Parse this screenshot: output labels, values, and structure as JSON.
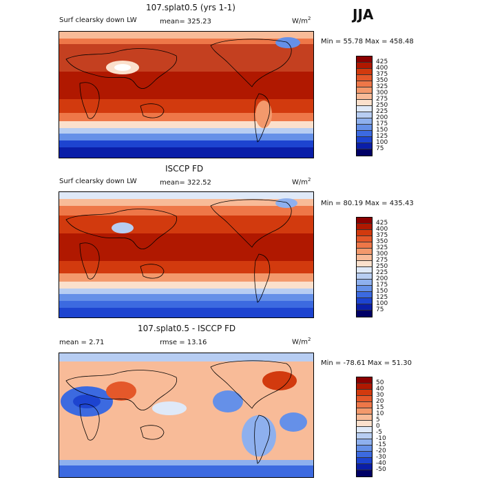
{
  "season": "JJA",
  "panels": [
    {
      "title": "107.splat0.5 (yrs 1-1)",
      "variable": "Surf clearsky down LW",
      "mean": "mean= 325.23",
      "units": "W/m",
      "units_sup": "2",
      "minmax": "Min =  55.78 Max = 458.48",
      "levels": [
        "425",
        "400",
        "375",
        "350",
        "325",
        "300",
        "275",
        "250",
        "225",
        "200",
        "175",
        "150",
        "125",
        "100",
        "75"
      ]
    },
    {
      "title": "ISCCP FD",
      "variable": "Surf clearsky down LW",
      "mean": "mean= 322.52",
      "units": "W/m",
      "units_sup": "2",
      "minmax": "Min =  80.19 Max = 435.43",
      "levels": [
        "425",
        "400",
        "375",
        "350",
        "325",
        "300",
        "275",
        "250",
        "225",
        "200",
        "175",
        "150",
        "125",
        "100",
        "75"
      ]
    },
    {
      "title": "107.splat0.5 - ISCCP FD",
      "mean": "mean =    2.71",
      "rmse": "rmse =   13.16",
      "units": "W/m",
      "units_sup": "2",
      "minmax": "Min = -78.61 Max =   51.30",
      "levels": [
        "50",
        "40",
        "30",
        "20",
        "15",
        "10",
        "5",
        "0",
        "-5",
        "-10",
        "-15",
        "-20",
        "-30",
        "-40",
        "-50"
      ]
    }
  ],
  "colors": {
    "scale": [
      "#8c0000",
      "#b01800",
      "#d23a0e",
      "#e4582a",
      "#ee7748",
      "#f3996c",
      "#f8bb98",
      "#fbe0cc",
      "#dfe9f8",
      "#b7cdf2",
      "#8eb0ee",
      "#6590e8",
      "#3c6ae0",
      "#1d44d0",
      "#0a1ea8",
      "#000066"
    ]
  }
}
